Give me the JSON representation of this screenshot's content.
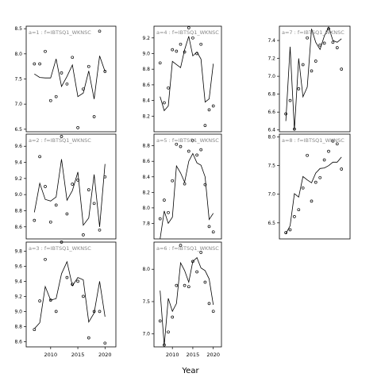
{
  "chart_data": {
    "type": "line+scatter",
    "xlabel": "Year",
    "layout": "3x3 panel grid, x axis shared per column",
    "x_ticks": [
      2010,
      2015,
      2020
    ],
    "panels": [
      {
        "title": "a=1 : f=IBTSQ1_WKNSC",
        "xlim": [
          2005.5,
          2022
        ],
        "ylim": [
          6.45,
          8.55
        ],
        "yticks": [
          "6.5",
          "7.0",
          "7.5",
          "8.0",
          "8.5"
        ],
        "ytick_values": [
          6.5,
          7.0,
          7.5,
          8.0,
          8.5
        ],
        "points": [
          [
            2007,
            7.8
          ],
          [
            2008,
            7.8
          ],
          [
            2009,
            8.05
          ],
          [
            2010,
            7.07
          ],
          [
            2011,
            7.15
          ],
          [
            2012,
            7.62
          ],
          [
            2013,
            7.4
          ],
          [
            2014,
            7.93
          ],
          [
            2015,
            6.53
          ],
          [
            2016,
            7.3
          ],
          [
            2017,
            7.75
          ],
          [
            2018,
            6.75
          ],
          [
            2019,
            8.45
          ],
          [
            2020,
            7.65
          ]
        ],
        "line": [
          [
            2007,
            7.6
          ],
          [
            2008,
            7.53
          ],
          [
            2009,
            7.52
          ],
          [
            2010,
            7.52
          ],
          [
            2011,
            7.9
          ],
          [
            2012,
            7.35
          ],
          [
            2013,
            7.55
          ],
          [
            2014,
            7.78
          ],
          [
            2015,
            7.15
          ],
          [
            2016,
            7.22
          ],
          [
            2017,
            7.66
          ],
          [
            2018,
            7.1
          ],
          [
            2019,
            7.96
          ],
          [
            2020,
            7.65
          ]
        ]
      },
      {
        "title": "a=4 : f=IBTSQ1_WKNSC",
        "xlim": [
          2005.5,
          2022
        ],
        "ylim": [
          8.0,
          9.35
        ],
        "yticks": [
          "8.2",
          "8.4",
          "8.6",
          "8.8",
          "9.0",
          "9.2"
        ],
        "ytick_values": [
          8.2,
          8.4,
          8.6,
          8.8,
          9.0,
          9.2
        ],
        "points": [
          [
            2007,
            8.88
          ],
          [
            2008,
            8.37
          ],
          [
            2009,
            8.56
          ],
          [
            2010,
            9.05
          ],
          [
            2011,
            9.03
          ],
          [
            2012,
            9.12
          ],
          [
            2013,
            9.02
          ],
          [
            2014,
            9.33
          ],
          [
            2015,
            9.2
          ],
          [
            2016,
            9.0
          ],
          [
            2017,
            9.12
          ],
          [
            2018,
            8.08
          ],
          [
            2019,
            8.28
          ],
          [
            2020,
            8.33
          ]
        ],
        "line": [
          [
            2007,
            8.45
          ],
          [
            2008,
            8.27
          ],
          [
            2009,
            8.33
          ],
          [
            2010,
            8.9
          ],
          [
            2011,
            8.86
          ],
          [
            2012,
            8.82
          ],
          [
            2013,
            9.05
          ],
          [
            2014,
            9.22
          ],
          [
            2015,
            8.97
          ],
          [
            2016,
            9.02
          ],
          [
            2017,
            8.93
          ],
          [
            2018,
            8.38
          ],
          [
            2019,
            8.42
          ],
          [
            2020,
            8.87
          ]
        ]
      },
      {
        "title": "a=7 : f=IBTSQ1_WKNSC",
        "xlim": [
          2005.5,
          2022
        ],
        "ylim": [
          6.38,
          7.56
        ],
        "yticks": [
          "6.4",
          "6.6",
          "6.8",
          "7.0",
          "7.2",
          "7.4"
        ],
        "ytick_values": [
          6.4,
          6.6,
          6.8,
          7.0,
          7.2,
          7.4
        ],
        "points": [
          [
            2007,
            6.58
          ],
          [
            2008,
            6.73
          ],
          [
            2009,
            6.41
          ],
          [
            2010,
            6.86
          ],
          [
            2011,
            7.13
          ],
          [
            2012,
            7.43
          ],
          [
            2013,
            7.06
          ],
          [
            2014,
            7.17
          ],
          [
            2015,
            7.35
          ],
          [
            2016,
            7.37
          ],
          [
            2017,
            7.53
          ],
          [
            2018,
            7.38
          ],
          [
            2019,
            7.32
          ],
          [
            2020,
            7.08
          ]
        ],
        "line": [
          [
            2007,
            6.5
          ],
          [
            2008,
            7.33
          ],
          [
            2009,
            6.4
          ],
          [
            2010,
            7.2
          ],
          [
            2011,
            6.77
          ],
          [
            2012,
            6.88
          ],
          [
            2013,
            7.53
          ],
          [
            2014,
            7.38
          ],
          [
            2015,
            7.3
          ],
          [
            2016,
            7.45
          ],
          [
            2017,
            7.55
          ],
          [
            2018,
            7.4
          ],
          [
            2019,
            7.38
          ],
          [
            2020,
            7.42
          ]
        ]
      },
      {
        "title": "a=2 : f=IBTSQ1_WKNSC",
        "xlim": [
          2005.5,
          2022
        ],
        "ylim": [
          8.45,
          9.75
        ],
        "yticks": [
          "8.6",
          "8.8",
          "9.0",
          "9.2",
          "9.4",
          "9.6"
        ],
        "ytick_values": [
          8.6,
          8.8,
          9.0,
          9.2,
          9.4,
          9.6
        ],
        "points": [
          [
            2007,
            8.68
          ],
          [
            2008,
            9.47
          ],
          [
            2009,
            9.1
          ],
          [
            2010,
            8.66
          ],
          [
            2011,
            8.87
          ],
          [
            2012,
            9.72
          ],
          [
            2013,
            8.76
          ],
          [
            2014,
            9.13
          ],
          [
            2015,
            9.18
          ],
          [
            2016,
            8.5
          ],
          [
            2017,
            9.06
          ],
          [
            2018,
            8.89
          ],
          [
            2019,
            8.56
          ],
          [
            2020,
            9.22
          ]
        ],
        "line": [
          [
            2007,
            8.78
          ],
          [
            2008,
            9.14
          ],
          [
            2009,
            8.94
          ],
          [
            2010,
            8.92
          ],
          [
            2011,
            8.97
          ],
          [
            2012,
            9.44
          ],
          [
            2013,
            8.93
          ],
          [
            2014,
            9.05
          ],
          [
            2015,
            9.28
          ],
          [
            2016,
            8.62
          ],
          [
            2017,
            8.71
          ],
          [
            2018,
            9.25
          ],
          [
            2019,
            8.6
          ],
          [
            2020,
            9.38
          ]
        ]
      },
      {
        "title": "a=5 : f=IBTSQ1_WKNSC",
        "xlim": [
          2005.5,
          2022
        ],
        "ylim": [
          7.6,
          8.95
        ],
        "yticks": [
          "7.8",
          "8.0",
          "8.2",
          "8.4",
          "8.6",
          "8.8"
        ],
        "ytick_values": [
          7.8,
          8.0,
          8.2,
          8.4,
          8.6,
          8.8
        ],
        "points": [
          [
            2007,
            7.86
          ],
          [
            2008,
            8.1
          ],
          [
            2009,
            7.94
          ],
          [
            2010,
            8.35
          ],
          [
            2011,
            8.82
          ],
          [
            2012,
            8.79
          ],
          [
            2013,
            8.31
          ],
          [
            2014,
            8.73
          ],
          [
            2015,
            8.87
          ],
          [
            2016,
            8.68
          ],
          [
            2017,
            8.75
          ],
          [
            2018,
            8.3
          ],
          [
            2019,
            7.76
          ],
          [
            2020,
            7.69
          ]
        ],
        "line": [
          [
            2007,
            7.6
          ],
          [
            2008,
            7.96
          ],
          [
            2009,
            7.8
          ],
          [
            2010,
            7.88
          ],
          [
            2011,
            8.54
          ],
          [
            2012,
            8.45
          ],
          [
            2013,
            8.33
          ],
          [
            2014,
            8.6
          ],
          [
            2015,
            8.7
          ],
          [
            2016,
            8.58
          ],
          [
            2017,
            8.55
          ],
          [
            2018,
            8.4
          ],
          [
            2019,
            7.85
          ],
          [
            2020,
            7.93
          ]
        ]
      },
      {
        "title": "a=8 : f=IBTSQ1_WKNSC",
        "xlim": [
          2005.5,
          2022
        ],
        "ylim": [
          6.22,
          8.05
        ],
        "yticks": [
          "6.5",
          "7.0",
          "7.5",
          "8.0"
        ],
        "ytick_values": [
          6.5,
          7.0,
          7.5,
          8.0
        ],
        "points": [
          [
            2007,
            6.33
          ],
          [
            2008,
            6.38
          ],
          [
            2009,
            6.61
          ],
          [
            2010,
            6.73
          ],
          [
            2011,
            7.11
          ],
          [
            2012,
            7.68
          ],
          [
            2013,
            6.88
          ],
          [
            2014,
            7.21
          ],
          [
            2015,
            7.29
          ],
          [
            2016,
            7.6
          ],
          [
            2017,
            7.75
          ],
          [
            2018,
            7.93
          ],
          [
            2019,
            7.88
          ],
          [
            2020,
            7.44
          ]
        ],
        "line": [
          [
            2007,
            6.31
          ],
          [
            2008,
            6.45
          ],
          [
            2009,
            7.01
          ],
          [
            2010,
            6.95
          ],
          [
            2011,
            7.31
          ],
          [
            2012,
            7.25
          ],
          [
            2013,
            7.2
          ],
          [
            2014,
            7.37
          ],
          [
            2015,
            7.45
          ],
          [
            2016,
            7.46
          ],
          [
            2017,
            7.5
          ],
          [
            2018,
            7.56
          ],
          [
            2019,
            7.56
          ],
          [
            2020,
            7.65
          ]
        ]
      },
      {
        "title": "a=3 : f=IBTSQ1_WKNSC",
        "xlim": [
          2005.5,
          2022
        ],
        "ylim": [
          8.53,
          9.92
        ],
        "yticks": [
          "8.6",
          "8.8",
          "9.0",
          "9.2",
          "9.4",
          "9.6",
          "9.8"
        ],
        "ytick_values": [
          8.6,
          8.8,
          9.0,
          9.2,
          9.4,
          9.6,
          9.8
        ],
        "points": [
          [
            2007,
            8.76
          ],
          [
            2008,
            9.14
          ],
          [
            2009,
            9.69
          ],
          [
            2010,
            9.15
          ],
          [
            2011,
            9.0
          ],
          [
            2012,
            9.92
          ],
          [
            2013,
            9.45
          ],
          [
            2014,
            9.36
          ],
          [
            2015,
            9.4
          ],
          [
            2016,
            9.2
          ],
          [
            2017,
            8.65
          ],
          [
            2018,
            9.0
          ],
          [
            2019,
            9.0
          ],
          [
            2020,
            8.58
          ]
        ],
        "line": [
          [
            2007,
            8.77
          ],
          [
            2008,
            8.85
          ],
          [
            2009,
            9.33
          ],
          [
            2010,
            9.15
          ],
          [
            2011,
            9.17
          ],
          [
            2012,
            9.5
          ],
          [
            2013,
            9.66
          ],
          [
            2014,
            9.34
          ],
          [
            2015,
            9.45
          ],
          [
            2016,
            9.42
          ],
          [
            2017,
            8.86
          ],
          [
            2018,
            8.98
          ],
          [
            2019,
            9.4
          ],
          [
            2020,
            8.93
          ]
        ]
      },
      {
        "title": "a=6 : f=IBTSQ1_WKNSC",
        "xlim": [
          2005.5,
          2022
        ],
        "ylim": [
          6.8,
          8.42
        ],
        "yticks": [
          "7.0",
          "7.5",
          "8.0"
        ],
        "ytick_values": [
          7.0,
          7.5,
          8.0
        ],
        "points": [
          [
            2007,
            7.2
          ],
          [
            2008,
            6.83
          ],
          [
            2009,
            7.03
          ],
          [
            2010,
            7.26
          ],
          [
            2011,
            7.75
          ],
          [
            2012,
            8.37
          ],
          [
            2013,
            7.75
          ],
          [
            2014,
            7.73
          ],
          [
            2015,
            8.12
          ],
          [
            2016,
            7.96
          ],
          [
            2017,
            8.26
          ],
          [
            2018,
            7.8
          ],
          [
            2019,
            7.47
          ],
          [
            2020,
            7.35
          ]
        ],
        "line": [
          [
            2007,
            7.67
          ],
          [
            2008,
            6.82
          ],
          [
            2009,
            7.55
          ],
          [
            2010,
            7.35
          ],
          [
            2011,
            7.47
          ],
          [
            2012,
            8.1
          ],
          [
            2013,
            7.98
          ],
          [
            2014,
            7.8
          ],
          [
            2015,
            8.12
          ],
          [
            2016,
            8.18
          ],
          [
            2017,
            8.02
          ],
          [
            2018,
            7.98
          ],
          [
            2019,
            7.85
          ],
          [
            2020,
            7.45
          ]
        ]
      }
    ]
  }
}
